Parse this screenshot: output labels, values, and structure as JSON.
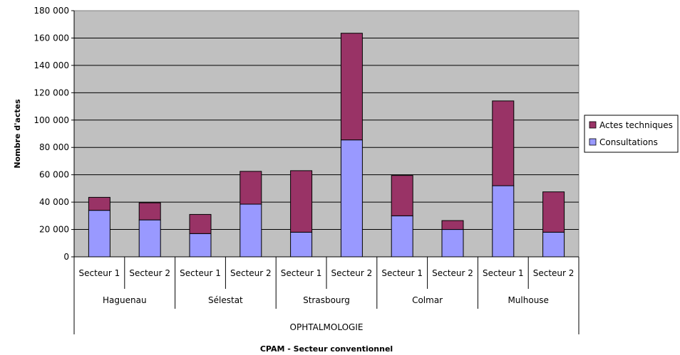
{
  "chart_data": {
    "type": "bar",
    "stacked": true,
    "ylabel": "Nombre d'actes",
    "xlabel": "CPAM - Secteur conventionnel",
    "ylim": [
      0,
      180000
    ],
    "ytick_step": 20000,
    "ytick_labels": [
      "0",
      "20 000",
      "40 000",
      "60 000",
      "80 000",
      "100 000",
      "120 000",
      "140 000",
      "160 000",
      "180 000"
    ],
    "grid": true,
    "legend_position": "right",
    "plot_background": "#C0C0C0",
    "categories": [
      "Secteur 1",
      "Secteur 2",
      "Secteur 1",
      "Secteur 2",
      "Secteur 1",
      "Secteur 2",
      "Secteur 1",
      "Secteur 2",
      "Secteur 1",
      "Secteur 2"
    ],
    "groups": [
      "Haguenau",
      "Sélestat",
      "Strasbourg",
      "Colmar",
      "Mulhouse"
    ],
    "super_group": "OPHTALMOLOGIE",
    "series": [
      {
        "name": "Consultations",
        "color": "#9999FF",
        "values": [
          34000,
          27000,
          17000,
          38500,
          18000,
          85500,
          30000,
          20000,
          52000,
          18000
        ]
      },
      {
        "name": "Actes techniques",
        "color": "#993366",
        "values": [
          9500,
          12500,
          14000,
          24000,
          45000,
          78000,
          29500,
          6500,
          62000,
          29500
        ]
      }
    ],
    "legend": [
      "Actes techniques",
      "Consultations"
    ]
  }
}
